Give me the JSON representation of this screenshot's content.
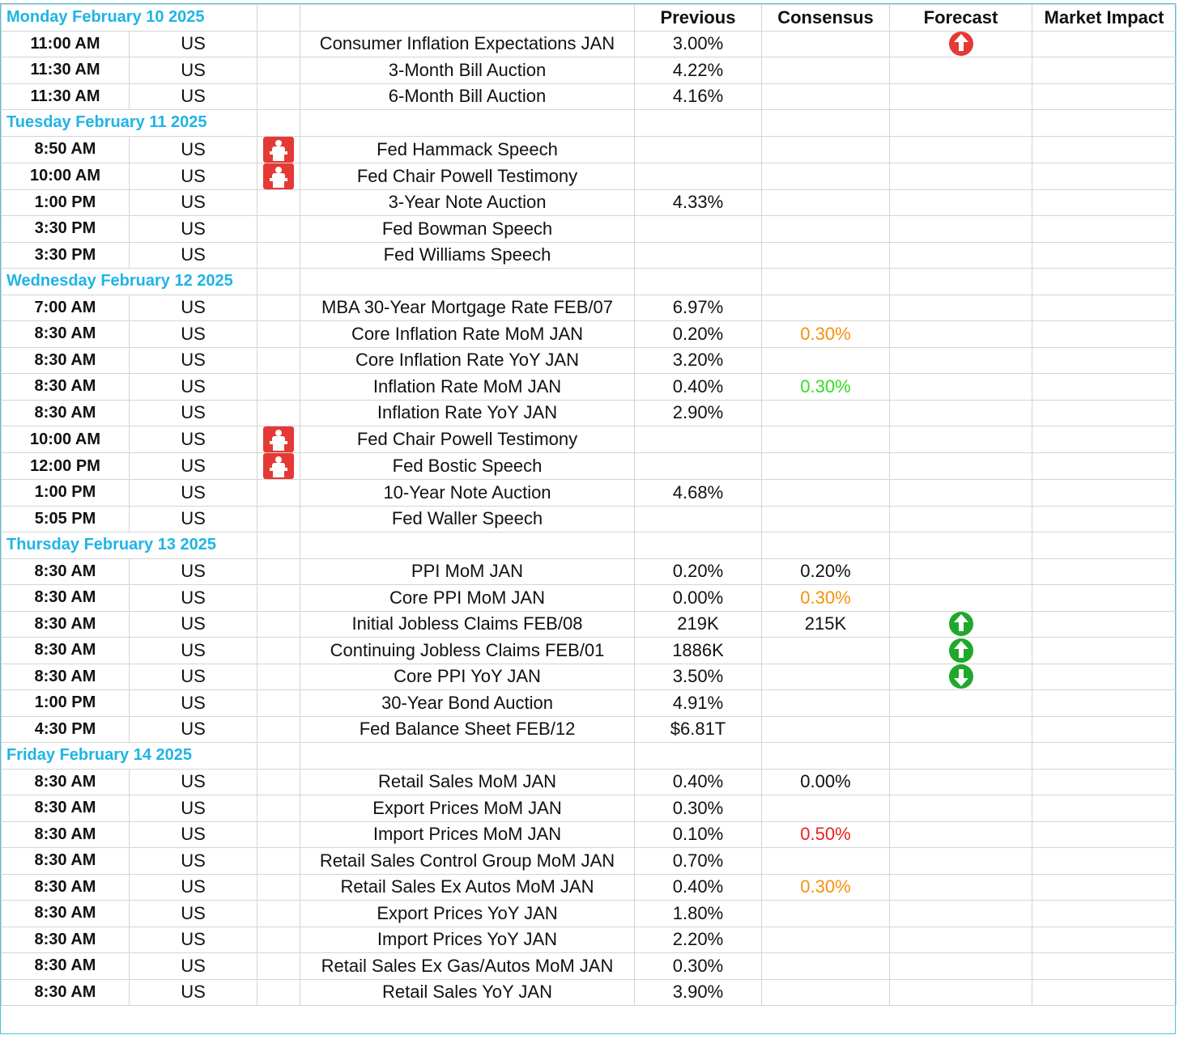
{
  "headers": {
    "previous": "Previous",
    "consensus": "Consensus",
    "forecast": "Forecast",
    "impact": "Market Impact"
  },
  "colors": {
    "day": "#1fb4e6",
    "orange": "#f5910d",
    "green": "#33dd22",
    "red": "#e82020",
    "speech_icon": "#e53935",
    "arrow_up_red": "#e53935",
    "arrow_green": "#1fa82a"
  },
  "rows": [
    {
      "type": "day",
      "label": "Monday February 10 2025"
    },
    {
      "time": "11:00 AM",
      "country": "US",
      "event": "Consumer Inflation Expectations JAN",
      "previous": "3.00%",
      "consensus": "",
      "forecast_icon": "arrow-up-red"
    },
    {
      "time": "11:30 AM",
      "country": "US",
      "event": "3-Month Bill Auction",
      "previous": "4.22%",
      "consensus": ""
    },
    {
      "time": "11:30 AM",
      "country": "US",
      "event": "6-Month Bill Auction",
      "previous": "4.16%",
      "consensus": ""
    },
    {
      "type": "day",
      "label": "Tuesday February 11 2025"
    },
    {
      "time": "8:50 AM",
      "country": "US",
      "icon": "speech-icon",
      "event": "Fed Hammack Speech",
      "previous": "",
      "consensus": ""
    },
    {
      "time": "10:00 AM",
      "country": "US",
      "icon": "speech-icon",
      "event": "Fed Chair Powell Testimony",
      "previous": "",
      "consensus": ""
    },
    {
      "time": "1:00 PM",
      "country": "US",
      "event": "3-Year Note Auction",
      "previous": "4.33%",
      "consensus": ""
    },
    {
      "time": "3:30 PM",
      "country": "US",
      "event": "Fed Bowman Speech",
      "previous": "",
      "consensus": ""
    },
    {
      "time": "3:30 PM",
      "country": "US",
      "event": "Fed Williams Speech",
      "previous": "",
      "consensus": ""
    },
    {
      "type": "day",
      "label": "Wednesday February 12 2025"
    },
    {
      "time": "7:00 AM",
      "country": "US",
      "event": "MBA 30-Year Mortgage Rate FEB/07",
      "previous": "6.97%",
      "consensus": ""
    },
    {
      "time": "8:30 AM",
      "country": "US",
      "event": "Core Inflation Rate MoM JAN",
      "previous": "0.20%",
      "consensus": "0.30%",
      "consensus_color": "#f5910d"
    },
    {
      "time": "8:30 AM",
      "country": "US",
      "event": "Core Inflation Rate YoY JAN",
      "previous": "3.20%",
      "consensus": ""
    },
    {
      "time": "8:30 AM",
      "country": "US",
      "event": "Inflation Rate MoM JAN",
      "previous": "0.40%",
      "consensus": "0.30%",
      "consensus_color": "#33dd22"
    },
    {
      "time": "8:30 AM",
      "country": "US",
      "event": "Inflation Rate YoY JAN",
      "previous": "2.90%",
      "consensus": ""
    },
    {
      "time": "10:00 AM",
      "country": "US",
      "icon": "speech-icon",
      "event": "Fed Chair Powell Testimony",
      "previous": "",
      "consensus": ""
    },
    {
      "time": "12:00 PM",
      "country": "US",
      "icon": "speech-icon",
      "event": "Fed Bostic Speech",
      "previous": "",
      "consensus": ""
    },
    {
      "time": "1:00 PM",
      "country": "US",
      "event": "10-Year Note Auction",
      "previous": "4.68%",
      "consensus": ""
    },
    {
      "time": "5:05 PM",
      "country": "US",
      "event": "Fed Waller Speech",
      "previous": "",
      "consensus": ""
    },
    {
      "type": "day",
      "label": "Thursday February 13 2025"
    },
    {
      "time": "8:30 AM",
      "country": "US",
      "event": "PPI MoM JAN",
      "previous": "0.20%",
      "consensus": "0.20%"
    },
    {
      "time": "8:30 AM",
      "country": "US",
      "event": "Core PPI MoM JAN",
      "previous": "0.00%",
      "consensus": "0.30%",
      "consensus_color": "#f5910d"
    },
    {
      "time": "8:30 AM",
      "country": "US",
      "event": "Initial Jobless Claims FEB/08",
      "previous": "219K",
      "consensus": "215K",
      "forecast_icon": "arrow-up-green"
    },
    {
      "time": "8:30 AM",
      "country": "US",
      "event": "Continuing Jobless Claims FEB/01",
      "previous": "1886K",
      "consensus": "",
      "forecast_icon": "arrow-up-green"
    },
    {
      "time": "8:30 AM",
      "country": "US",
      "event": "Core PPI YoY JAN",
      "previous": "3.50%",
      "consensus": "",
      "forecast_icon": "arrow-down-green"
    },
    {
      "time": "1:00 PM",
      "country": "US",
      "event": "30-Year Bond Auction",
      "previous": "4.91%",
      "consensus": ""
    },
    {
      "time": "4:30 PM",
      "country": "US",
      "event": "Fed Balance Sheet FEB/12",
      "previous": "$6.81T",
      "consensus": ""
    },
    {
      "type": "day",
      "label": "Friday February 14 2025"
    },
    {
      "time": "8:30 AM",
      "country": "US",
      "event": "Retail Sales MoM JAN",
      "previous": "0.40%",
      "consensus": "0.00%"
    },
    {
      "time": "8:30 AM",
      "country": "US",
      "event": "Export Prices MoM JAN",
      "previous": "0.30%",
      "consensus": ""
    },
    {
      "time": "8:30 AM",
      "country": "US",
      "event": "Import Prices MoM JAN",
      "previous": "0.10%",
      "consensus": "0.50%",
      "consensus_color": "#e82020"
    },
    {
      "time": "8:30 AM",
      "country": "US",
      "event": "Retail Sales Control Group MoM JAN",
      "previous": "0.70%",
      "consensus": ""
    },
    {
      "time": "8:30 AM",
      "country": "US",
      "event": "Retail Sales Ex Autos MoM JAN",
      "previous": "0.40%",
      "consensus": "0.30%",
      "consensus_color": "#f5910d"
    },
    {
      "time": "8:30 AM",
      "country": "US",
      "event": "Export Prices YoY JAN",
      "previous": "1.80%",
      "consensus": ""
    },
    {
      "time": "8:30 AM",
      "country": "US",
      "event": "Import Prices YoY JAN",
      "previous": "2.20%",
      "consensus": ""
    },
    {
      "time": "8:30 AM",
      "country": "US",
      "event": "Retail Sales Ex Gas/Autos MoM JAN",
      "previous": "0.30%",
      "consensus": ""
    },
    {
      "time": "8:30 AM",
      "country": "US",
      "event": "Retail Sales YoY JAN",
      "previous": "3.90%",
      "consensus": ""
    }
  ]
}
